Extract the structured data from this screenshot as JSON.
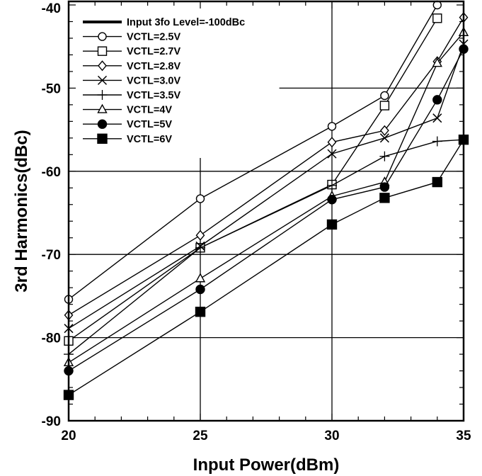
{
  "chart_data": {
    "type": "line",
    "xlabel": "Input Power(dBm)",
    "ylabel": "3rd Harmonics(dBc)",
    "xlim": [
      20,
      35
    ],
    "ylim": [
      -90,
      -40
    ],
    "xticks": [
      20,
      25,
      30,
      35
    ],
    "yticks": [
      -90,
      -80,
      -70,
      -60,
      -50,
      -40
    ],
    "reference_line": {
      "name": "Input 3fo Level=-100dBc",
      "value": -100
    },
    "legend_position": "top-left",
    "series": [
      {
        "name": "VCTL=2.5V",
        "marker": "circle-open",
        "x": [
          20,
          25,
          30,
          32,
          34
        ],
        "y": [
          -75.4,
          -63.3,
          -54.6,
          -50.9,
          -40.0
        ]
      },
      {
        "name": "VCTL=2.7V",
        "marker": "square-open",
        "x": [
          20,
          25,
          30,
          32,
          34
        ],
        "y": [
          -80.4,
          -69.2,
          -61.6,
          -52.1,
          -41.6
        ]
      },
      {
        "name": "VCTL=2.8V",
        "marker": "diamond-open",
        "x": [
          20,
          25,
          30,
          32,
          34,
          35
        ],
        "y": [
          -77.3,
          -67.7,
          -56.5,
          -55.1,
          -46.8,
          -41.5
        ]
      },
      {
        "name": "VCTL=3.0V",
        "marker": "x",
        "x": [
          20,
          25,
          30,
          32,
          34,
          35
        ],
        "y": [
          -78.9,
          -69.0,
          -57.9,
          -56.0,
          -53.6,
          -44.7
        ]
      },
      {
        "name": "VCTL=3.5V",
        "marker": "plus",
        "x": [
          20,
          25,
          30,
          32,
          34,
          35
        ],
        "y": [
          -82.0,
          -69.2,
          -61.7,
          -58.2,
          -56.4,
          -56.2
        ]
      },
      {
        "name": "VCTL=4V",
        "marker": "triangle-open",
        "x": [
          20,
          25,
          30,
          32,
          34,
          35
        ],
        "y": [
          -83.0,
          -72.9,
          -63.0,
          -61.3,
          -47.0,
          -43.3
        ]
      },
      {
        "name": "VCTL=5V",
        "marker": "circle-filled",
        "x": [
          20,
          25,
          30,
          32,
          34,
          35
        ],
        "y": [
          -84.0,
          -74.2,
          -63.4,
          -61.9,
          -51.4,
          -45.3
        ]
      },
      {
        "name": "VCTL=6V",
        "marker": "square-filled",
        "x": [
          20,
          25,
          30,
          32,
          34,
          35
        ],
        "y": [
          -86.9,
          -76.9,
          -66.4,
          -63.2,
          -61.3,
          -56.2
        ]
      }
    ]
  }
}
